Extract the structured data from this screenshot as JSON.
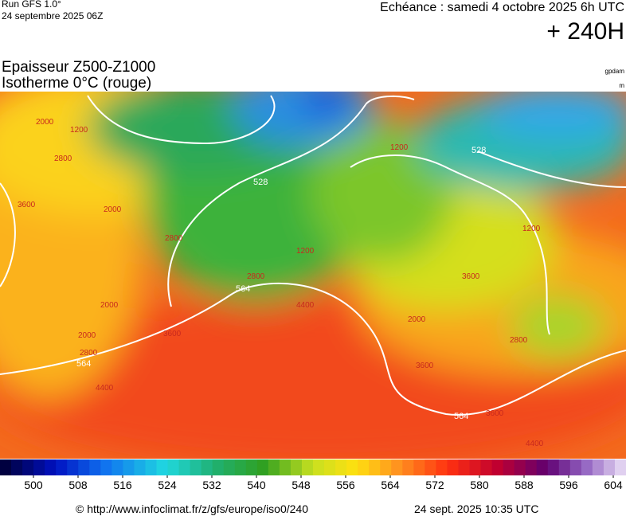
{
  "header": {
    "run": "Run GFS 1.0°",
    "run_date": "24 septembre 2025 06Z",
    "valid": "Echéance : samedi 4 octobre 2025 6h UTC",
    "lead": "+ 240H"
  },
  "map": {
    "title": "Epaisseur Z500-Z1000",
    "subtitle": "Isotherme 0°C (rouge)",
    "unit_thickness": "gpdam",
    "unit_iso": "m",
    "contour_labels": [
      "2000",
      "1200",
      "2800",
      "3600",
      "2000",
      "528",
      "1200",
      "2800",
      "1200",
      "2000",
      "2800",
      "564",
      "4400",
      "3600",
      "2000",
      "2800",
      "564",
      "4400",
      "1200",
      "528",
      "3600",
      "2800",
      "564",
      "3600",
      "4400",
      "2000",
      "3600"
    ]
  },
  "colorbar": {
    "ticks": [
      500,
      508,
      516,
      524,
      532,
      540,
      548,
      556,
      564,
      572,
      580,
      588,
      596,
      604
    ]
  },
  "footer": {
    "source": "© http://www.infoclimat.fr/z/gfs/europe/iso0/240",
    "generated": "24 sept. 2025 10:35 UTC"
  }
}
